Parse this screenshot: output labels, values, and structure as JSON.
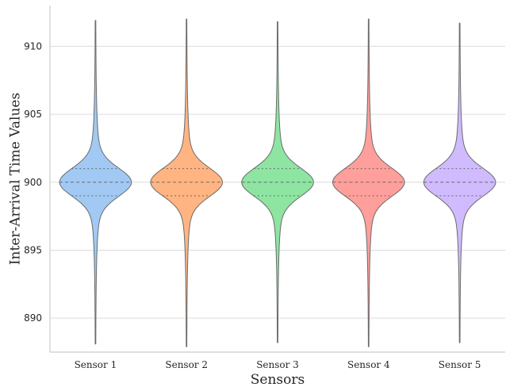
{
  "chart_data": {
    "type": "violin",
    "title": "",
    "xlabel": "Sensors",
    "ylabel": "Inter-Arrival Time Values",
    "ylim": [
      887.5,
      913.0
    ],
    "yticks": [
      890,
      895,
      900,
      905,
      910
    ],
    "grid": "horizontal",
    "inner": "quartiles",
    "colors": {
      "fills": [
        "#a1c9f4",
        "#ffb482",
        "#8de5a1",
        "#ff9f9b",
        "#d0bbff"
      ],
      "edge": "#6b6b6b",
      "grid": "#dcdcdc",
      "spine": "#cccccc"
    },
    "series": [
      {
        "name": "Sensor 1",
        "min": 888.1,
        "q1": 899.0,
        "median": 900.0,
        "q3": 901.0,
        "max": 911.9
      },
      {
        "name": "Sensor 2",
        "min": 887.9,
        "q1": 899.0,
        "median": 900.0,
        "q3": 901.0,
        "max": 912.0
      },
      {
        "name": "Sensor 3",
        "min": 888.2,
        "q1": 899.0,
        "median": 900.0,
        "q3": 901.0,
        "max": 911.8
      },
      {
        "name": "Sensor 4",
        "min": 887.9,
        "q1": 899.0,
        "median": 900.0,
        "q3": 901.0,
        "max": 912.0
      },
      {
        "name": "Sensor 5",
        "min": 888.2,
        "q1": 899.0,
        "median": 900.0,
        "q3": 901.0,
        "max": 911.7
      }
    ]
  }
}
